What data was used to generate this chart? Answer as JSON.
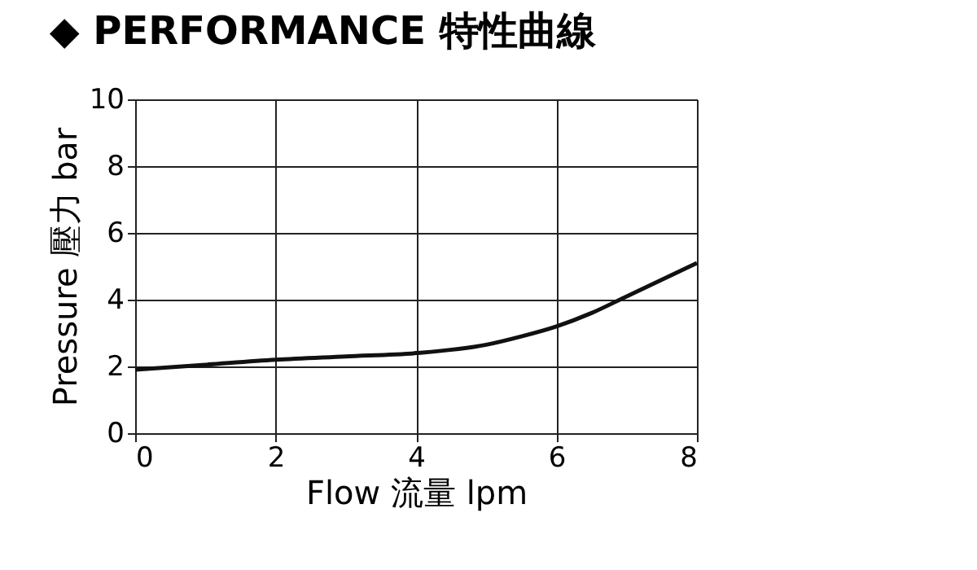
{
  "chart_data": {
    "type": "line",
    "title": "◆ PERFORMANCE 特性曲線",
    "xlabel": "Flow 流量 lpm",
    "ylabel": "Pressure 壓力 bar",
    "x": [
      0,
      1,
      2,
      3,
      4,
      5,
      5.5,
      6,
      6.5,
      7,
      7.5,
      8
    ],
    "series": [
      {
        "color": "#111111",
        "values": [
          1.9,
          2.05,
          2.2,
          2.3,
          2.4,
          2.65,
          2.9,
          3.2,
          3.6,
          4.1,
          4.6,
          5.1
        ]
      }
    ],
    "xlim": [
      0,
      8
    ],
    "xticks": [
      0,
      2,
      4,
      6,
      8
    ],
    "ylim": [
      0,
      10
    ],
    "yticks": [
      0,
      2,
      4,
      6,
      8,
      10
    ],
    "grid": true,
    "marker": "none",
    "line_style": "solid"
  }
}
